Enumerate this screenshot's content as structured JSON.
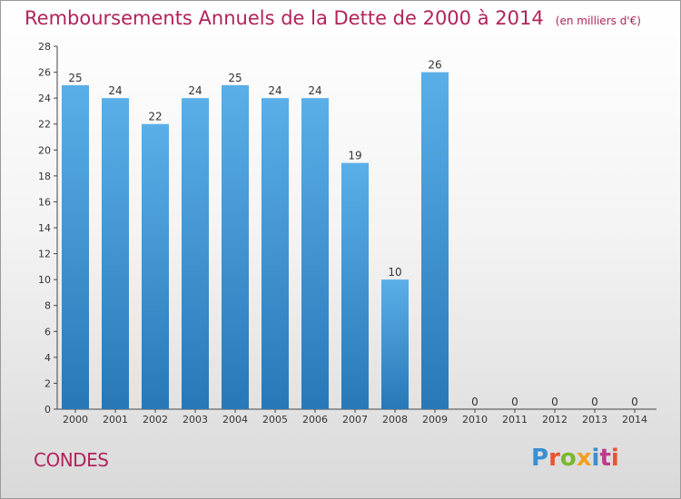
{
  "chart_data": {
    "type": "bar",
    "title": "Remboursements Annuels de la Dette de 2000 à 2014",
    "subtitle": "(en milliers d'€)",
    "categories": [
      "2000",
      "2001",
      "2002",
      "2003",
      "2004",
      "2005",
      "2006",
      "2007",
      "2008",
      "2009",
      "2010",
      "2011",
      "2012",
      "2013",
      "2014"
    ],
    "values": [
      25,
      24,
      22,
      24,
      25,
      24,
      24,
      19,
      10,
      26,
      0,
      0,
      0,
      0,
      0
    ],
    "ylim": [
      0,
      28
    ],
    "yticks": [
      0,
      2,
      4,
      6,
      8,
      10,
      12,
      14,
      16,
      18,
      20,
      22,
      24,
      26,
      28
    ],
    "xlabel": "",
    "ylabel": "",
    "grid": false,
    "bar_color_top": "#5aafe8",
    "bar_color_bottom": "#2878b8"
  },
  "footer": {
    "commune": "CONDES",
    "logo": "Proxiti",
    "logo_colors": [
      "#3a8fd0",
      "#e8552c",
      "#7ab82e",
      "#f0a020",
      "#3a8fd0",
      "#c03a8a",
      "#e8552c"
    ]
  }
}
